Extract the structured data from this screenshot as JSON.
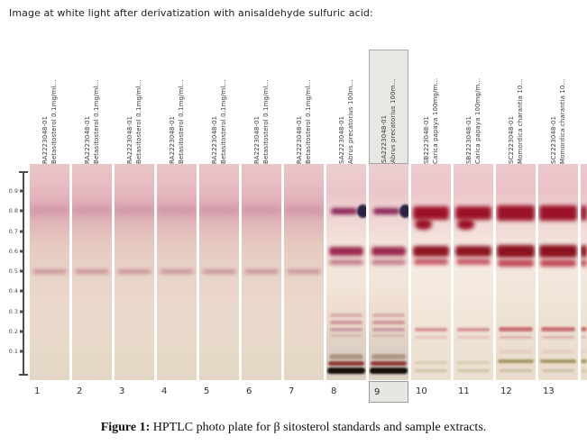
{
  "header": {
    "title": "Image at white light after derivatization with anisaldehyde sulfuric acid:"
  },
  "caption": {
    "label": "Figure 1:",
    "text": "HPTLC photo plate for β sitosterol standards and sample extracts."
  },
  "ruler": {
    "ticks": [
      "0.9",
      "0.8",
      "0.7",
      "0.6",
      "0.5",
      "0.4",
      "0.3",
      "0.2",
      "0.1"
    ]
  },
  "plate": {
    "highlighted_lane": "9",
    "lanes": [
      {
        "number": "1",
        "id": "RA2223048-01",
        "desc": "Betasitosterol 0.1mg/ml...",
        "group": "standard"
      },
      {
        "number": "2",
        "id": "RA2223048-01",
        "desc": "Betasitosterol 0.1mg/ml...",
        "group": "standard"
      },
      {
        "number": "3",
        "id": "RA2223048-01",
        "desc": "Betasitosterol 0.1mg/ml...",
        "group": "standard"
      },
      {
        "number": "4",
        "id": "RA2223048-01",
        "desc": "Betasitosterol 0.1mg/ml...",
        "group": "standard"
      },
      {
        "number": "5",
        "id": "RA2223048-01",
        "desc": "Betasitosterol 0.1mg/ml...",
        "group": "standard"
      },
      {
        "number": "6",
        "id": "RA2223048-01",
        "desc": "Betasitosterol 0.1mg/ml...",
        "group": "standard"
      },
      {
        "number": "7",
        "id": "RA2223048-01",
        "desc": "Betasitosterol 0.1mg/ml...",
        "group": "standard"
      },
      {
        "number": "8",
        "id": "SA2223048-01",
        "desc": "Abrus precatorius 100m...",
        "group": "abrus"
      },
      {
        "number": "9",
        "id": "SA2223048-01",
        "desc": "Abrus precatorius 100m...",
        "group": "abrus",
        "highlighted": true
      },
      {
        "number": "10",
        "id": "SB2223048-01",
        "desc": "Carica papaya 100mg/m...",
        "group": "papaya"
      },
      {
        "number": "11",
        "id": "SB2223048-01",
        "desc": "Carica papaya 100mg/m...",
        "group": "papaya"
      },
      {
        "number": "12",
        "id": "SC2223048-01",
        "desc": "Momordica charantia 10...",
        "group": "momordica"
      },
      {
        "number": "13",
        "id": "SC2223048-01",
        "desc": "Momordica charantia 10...",
        "group": "momordica"
      }
    ],
    "partial_lane": {
      "group": "momordica"
    },
    "band_sets": {
      "standard": [
        {
          "rf": 0.8,
          "h": 8,
          "color": "#cf93a3",
          "blur": 4,
          "op": 0.85,
          "il": 0,
          "ir": 0
        },
        {
          "rf": 0.5,
          "h": 5,
          "color": "#c2838e",
          "blur": 2,
          "op": 0.8,
          "il": 6,
          "ir": 6
        }
      ],
      "abrus": [
        {
          "rf": 0.8,
          "h": 7,
          "color": "#8a2457",
          "blur": 2,
          "op": 1,
          "il": 12,
          "ir": 22
        },
        {
          "rf": 0.8,
          "h": 15,
          "w": 13,
          "color": "#2a2144",
          "blur": 1,
          "op": 1,
          "shape": "blob"
        },
        {
          "rf": 0.6,
          "h": 10,
          "color": "#992a4e",
          "blur": 2,
          "op": 1,
          "il": 6,
          "ir": 6
        },
        {
          "rf": 0.545,
          "h": 6,
          "color": "#bd7181",
          "blur": 2,
          "op": 0.9,
          "il": 6,
          "ir": 6
        },
        {
          "rf": 0.28,
          "h": 4,
          "color": "#d9a8ac",
          "blur": 1,
          "op": 0.9,
          "il": 8,
          "ir": 8
        },
        {
          "rf": 0.245,
          "h": 4,
          "color": "#cc9199",
          "blur": 1,
          "op": 0.9,
          "il": 8,
          "ir": 8
        },
        {
          "rf": 0.21,
          "h": 4,
          "color": "#c9939c",
          "blur": 1,
          "op": 0.85,
          "il": 8,
          "ir": 8
        },
        {
          "rf": 0.18,
          "h": 3,
          "color": "#d4aeb0",
          "blur": 1,
          "op": 0.8,
          "il": 10,
          "ir": 10
        },
        {
          "rf": 0.075,
          "h": 6,
          "color": "#ab917e",
          "blur": 1,
          "op": 0.9,
          "il": 6,
          "ir": 6
        },
        {
          "rf": 0.04,
          "h": 5,
          "color": "#8f3a38",
          "blur": 1,
          "op": 1,
          "il": 5,
          "ir": 5
        },
        {
          "rf": 0.005,
          "h": 7,
          "color": "#17100a",
          "blur": 1,
          "op": 1,
          "il": 3,
          "ir": 3
        }
      ],
      "papaya": [
        {
          "rf": 0.79,
          "h": 15,
          "color": "#9c1228",
          "blur": 2.5,
          "op": 1,
          "il": 4,
          "ir": 4
        },
        {
          "rf": 0.735,
          "h": 12,
          "color": "#9c1228",
          "blur": 2.5,
          "op": 1,
          "il": 10,
          "ir": 48,
          "shape": "lobe"
        },
        {
          "rf": 0.6,
          "h": 12,
          "color": "#8e1624",
          "blur": 2,
          "op": 1,
          "il": 4,
          "ir": 4
        },
        {
          "rf": 0.545,
          "h": 7,
          "color": "#c25460",
          "blur": 2,
          "op": 0.95,
          "il": 6,
          "ir": 6
        },
        {
          "rf": 0.21,
          "h": 4,
          "color": "#d28a90",
          "blur": 1,
          "op": 0.9,
          "il": 8,
          "ir": 8
        },
        {
          "rf": 0.17,
          "h": 3,
          "color": "#e0b4b4",
          "blur": 1,
          "op": 0.7,
          "il": 10,
          "ir": 10
        },
        {
          "rf": 0.045,
          "h": 3,
          "color": "#d5c3ac",
          "blur": 1,
          "op": 0.8,
          "il": 8,
          "ir": 8
        },
        {
          "rf": 0.005,
          "h": 3,
          "color": "#c9bc9e",
          "blur": 1,
          "op": 0.8,
          "il": 8,
          "ir": 8
        }
      ],
      "momordica": [
        {
          "rf": 0.79,
          "h": 17,
          "color": "#9a1229",
          "blur": 2.5,
          "op": 1,
          "il": 3,
          "ir": 3
        },
        {
          "rf": 0.6,
          "h": 14,
          "color": "#8c1220",
          "blur": 2,
          "op": 1,
          "il": 2,
          "ir": 2
        },
        {
          "rf": 0.54,
          "h": 8,
          "color": "#bc4450",
          "blur": 2,
          "op": 0.95,
          "il": 4,
          "ir": 4
        },
        {
          "rf": 0.21,
          "h": 5,
          "color": "#c76b72",
          "blur": 1,
          "op": 0.95,
          "il": 6,
          "ir": 6
        },
        {
          "rf": 0.17,
          "h": 3,
          "color": "#daa6a8",
          "blur": 1,
          "op": 0.8,
          "il": 8,
          "ir": 8
        },
        {
          "rf": 0.1,
          "h": 3,
          "color": "#e0c0b8",
          "blur": 1,
          "op": 0.7,
          "il": 8,
          "ir": 8
        },
        {
          "rf": 0.05,
          "h": 4,
          "color": "#9c8f58",
          "blur": 1,
          "op": 0.9,
          "il": 5,
          "ir": 5
        },
        {
          "rf": 0.005,
          "h": 3,
          "color": "#c4b896",
          "blur": 1,
          "op": 0.8,
          "il": 8,
          "ir": 8
        }
      ]
    }
  }
}
